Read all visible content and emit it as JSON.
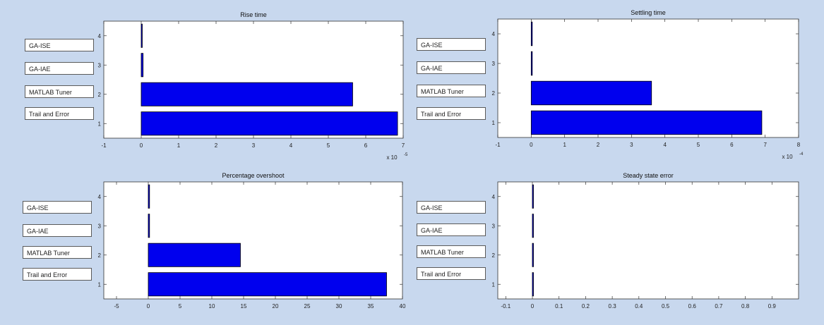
{
  "chart_data": [
    {
      "type": "bar",
      "orientation": "horizontal",
      "title": "Rise time",
      "categories": [
        "1",
        "2",
        "3",
        "4"
      ],
      "values": [
        6.85,
        5.65,
        0.05,
        0.01
      ],
      "xlim": [
        -1,
        7
      ],
      "xticks": [
        "-1",
        "0",
        "1",
        "2",
        "3",
        "4",
        "5",
        "6",
        "7"
      ],
      "xexponent": "x 10",
      "xexponent_power": "-5",
      "labels": [
        "Trail and Error",
        "MATLAB Tuner",
        "GA-IAE",
        "GA-ISE"
      ],
      "bar_color": "#0000ee",
      "grid": false
    },
    {
      "type": "bar",
      "orientation": "horizontal",
      "title": "Settling time",
      "categories": [
        "1",
        "2",
        "3",
        "4"
      ],
      "values": [
        6.9,
        3.6,
        0.03,
        0.01
      ],
      "xlim": [
        -1,
        8
      ],
      "xticks": [
        "-1",
        "0",
        "1",
        "2",
        "3",
        "4",
        "5",
        "6",
        "7",
        "8"
      ],
      "xexponent": "x 10",
      "xexponent_power": "-4",
      "labels": [
        "Trail and Error",
        "MATLAB Tuner",
        "GA-IAE",
        "GA-ISE"
      ],
      "bar_color": "#0000ee",
      "grid": false
    },
    {
      "type": "bar",
      "orientation": "horizontal",
      "title": "Percentage overshoot",
      "categories": [
        "1",
        "2",
        "3",
        "4"
      ],
      "values": [
        37.5,
        14.5,
        0.2,
        0.2
      ],
      "xlim": [
        -7,
        40
      ],
      "xticks": [
        "-5",
        "0",
        "5",
        "10",
        "15",
        "20",
        "25",
        "30",
        "35",
        "40"
      ],
      "xtick_values": [
        -5,
        0,
        5,
        10,
        15,
        20,
        25,
        30,
        35,
        40
      ],
      "labels": [
        "Trail and Error",
        "MATLAB Tuner",
        "GA-IAE",
        "GA-ISE"
      ],
      "bar_color": "#0000ee",
      "grid": false
    },
    {
      "type": "bar",
      "orientation": "horizontal",
      "title": "Steady state error",
      "categories": [
        "1",
        "2",
        "3",
        "4"
      ],
      "values": [
        0.001,
        0.001,
        0.001,
        0.001
      ],
      "xlim": [
        -0.13,
        1
      ],
      "xticks": [
        "-0.1",
        "0",
        "0.1",
        "0.2",
        "0.3",
        "0.4",
        "0.5",
        "0.6",
        "0.7",
        "0.8",
        "0.9"
      ],
      "xtick_values": [
        -0.1,
        0,
        0.1,
        0.2,
        0.3,
        0.4,
        0.5,
        0.6,
        0.7,
        0.8,
        0.9
      ],
      "labels": [
        "Trail and Error",
        "MATLAB Tuner",
        "GA-IAE",
        "GA-ISE"
      ],
      "bar_color": "#0000ee",
      "grid": false
    }
  ]
}
